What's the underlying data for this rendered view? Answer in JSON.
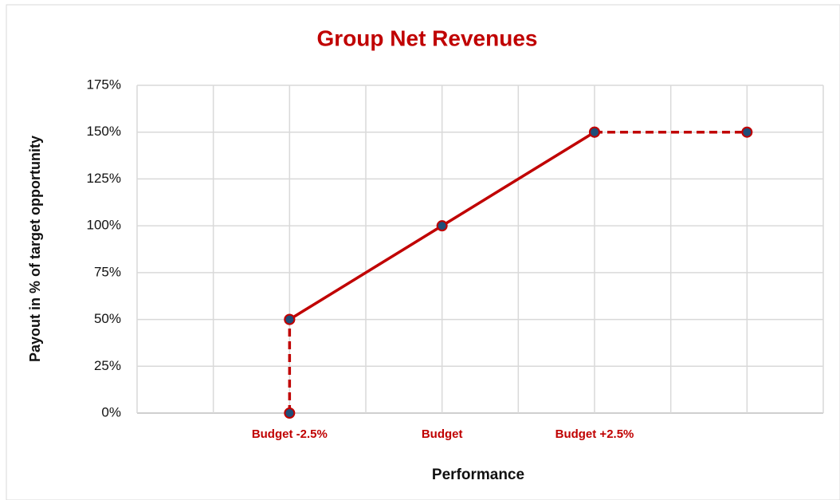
{
  "chart_data": {
    "type": "line",
    "title": "Group Net Revenues",
    "x_label": "Performance",
    "y_label": "Payout in % of target opportunity",
    "xlim": [
      0,
      9
    ],
    "xticks": [
      {
        "value": 0,
        "label": null
      },
      {
        "value": 1,
        "label": null
      },
      {
        "value": 2,
        "label": "Budget -2.5%"
      },
      {
        "value": 3,
        "label": null
      },
      {
        "value": 4,
        "label": "Budget"
      },
      {
        "value": 5,
        "label": null
      },
      {
        "value": 6,
        "label": "Budget +2.5%"
      },
      {
        "value": 7,
        "label": null
      },
      {
        "value": 8,
        "label": null
      },
      {
        "value": 9,
        "label": null
      }
    ],
    "ylim": [
      0,
      175
    ],
    "yticks": [
      {
        "value": 0,
        "label": "0%"
      },
      {
        "value": 25,
        "label": "25%"
      },
      {
        "value": 50,
        "label": "50%"
      },
      {
        "value": 75,
        "label": "75%"
      },
      {
        "value": 100,
        "label": "100%"
      },
      {
        "value": 125,
        "label": "125%"
      },
      {
        "value": 150,
        "label": "150%"
      },
      {
        "value": 175,
        "label": "175%"
      }
    ],
    "grid": true,
    "series": [
      {
        "x": [
          2,
          4,
          6
        ],
        "values": [
          50,
          100,
          150
        ],
        "color": "#c00000",
        "dash": "solid"
      },
      {
        "x": [
          2,
          2
        ],
        "values": [
          0,
          50
        ],
        "color": "#c00000",
        "dash": "dashed"
      },
      {
        "x": [
          6,
          8
        ],
        "values": [
          150,
          150
        ],
        "color": "#c00000",
        "dash": "dashed"
      }
    ],
    "marker_color": "#1f4e79"
  }
}
